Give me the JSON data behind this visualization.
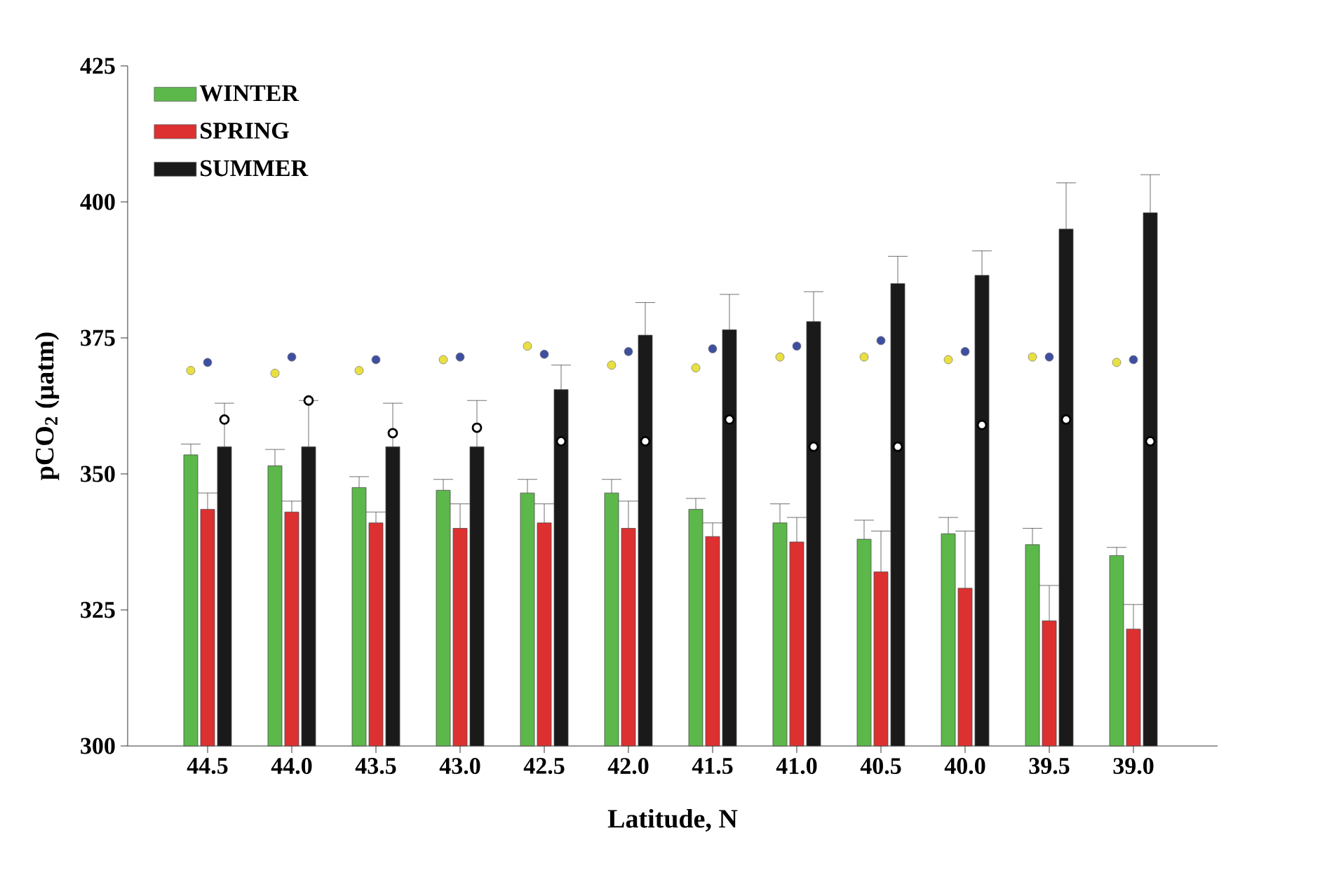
{
  "chart_data": {
    "type": "bar",
    "xlabel": "Latitude, N",
    "ylabel": "pCO$_{2}$ (µatm)",
    "categories": [
      "44.5",
      "44.0",
      "43.5",
      "43.0",
      "42.5",
      "42.0",
      "41.5",
      "41.0",
      "40.5",
      "40.0",
      "39.5",
      "39.0"
    ],
    "series": [
      {
        "name": "WINTER",
        "color": "#5cb84a",
        "values": [
          353.5,
          351.5,
          347.5,
          347,
          346.5,
          346.5,
          343.5,
          341,
          338,
          339,
          337,
          335
        ],
        "errors": [
          [
            353.5,
            355.5
          ],
          [
            351.5,
            354.5
          ],
          [
            347.5,
            349.5
          ],
          [
            347,
            349
          ],
          [
            346.5,
            349
          ],
          [
            346.5,
            349
          ],
          [
            343.5,
            345.5
          ],
          [
            341,
            344.5
          ],
          [
            338,
            341.5
          ],
          [
            339,
            342
          ],
          [
            337,
            340
          ],
          [
            335,
            336.5
          ]
        ]
      },
      {
        "name": "SPRING",
        "color": "#dd3030",
        "values": [
          343.5,
          343,
          341,
          340,
          341,
          340,
          338.5,
          337.5,
          332,
          329,
          323,
          321.5
        ],
        "errors": [
          [
            343.5,
            346.5
          ],
          [
            343,
            345
          ],
          [
            341,
            343
          ],
          [
            340,
            344.5
          ],
          [
            341,
            344.5
          ],
          [
            340,
            345
          ],
          [
            338.5,
            341
          ],
          [
            337.5,
            342
          ],
          [
            332,
            339.5
          ],
          [
            329,
            339.5
          ],
          [
            323,
            329.5
          ],
          [
            321.5,
            326
          ]
        ]
      },
      {
        "name": "SUMMER",
        "color": "#1a1a1a",
        "values": [
          355,
          355,
          355,
          355,
          365.5,
          375.5,
          376.5,
          378,
          385,
          386.5,
          395,
          398
        ],
        "errors": [
          [
            355,
            363
          ],
          [
            355,
            363.5
          ],
          [
            355,
            363
          ],
          [
            355,
            363.5
          ],
          [
            365.5,
            370
          ],
          [
            375.5,
            381.5
          ],
          [
            376.5,
            383
          ],
          [
            378,
            383.5
          ],
          [
            385,
            390
          ],
          [
            386.5,
            391
          ],
          [
            395,
            403.5
          ],
          [
            398,
            405
          ]
        ]
      },
      {
        "type": "scatter",
        "color": "#e8e040",
        "x": [
          "44.5",
          "44.0",
          "43.5",
          "43.0",
          "42.5",
          "42.0",
          "41.5",
          "41.0",
          "40.5",
          "40.0",
          "39.5",
          "39.0"
        ],
        "values": [
          369,
          368.5,
          369,
          371,
          373.5,
          370,
          369.5,
          371.5,
          371.5,
          371,
          371.5,
          370.5
        ]
      },
      {
        "type": "scatter",
        "color": "#3f4fa0",
        "x": [
          "44.5",
          "44.0",
          "43.5",
          "43.0",
          "42.5",
          "42.0",
          "41.5",
          "41.0",
          "40.5",
          "40.0",
          "39.5",
          "39.0"
        ],
        "values": [
          370.5,
          371.5,
          371,
          371.5,
          372,
          372.5,
          373,
          373.5,
          374.5,
          372.5,
          371.5,
          371
        ]
      },
      {
        "type": "scatter",
        "color": "#ffffff",
        "x": [
          "44.5",
          "44.0",
          "43.5",
          "43.0",
          "42.5",
          "42.0",
          "41.5",
          "41.0",
          "40.5",
          "40.0",
          "39.5",
          "39.0"
        ],
        "values": [
          360,
          363.5,
          357.5,
          358.5,
          356,
          356,
          360,
          355,
          355,
          359,
          360,
          356
        ]
      }
    ],
    "ylim": [
      300,
      425
    ],
    "yticks": [
      300,
      325,
      350,
      375,
      400,
      425
    ],
    "marker": "circle",
    "legend": "top left"
  }
}
